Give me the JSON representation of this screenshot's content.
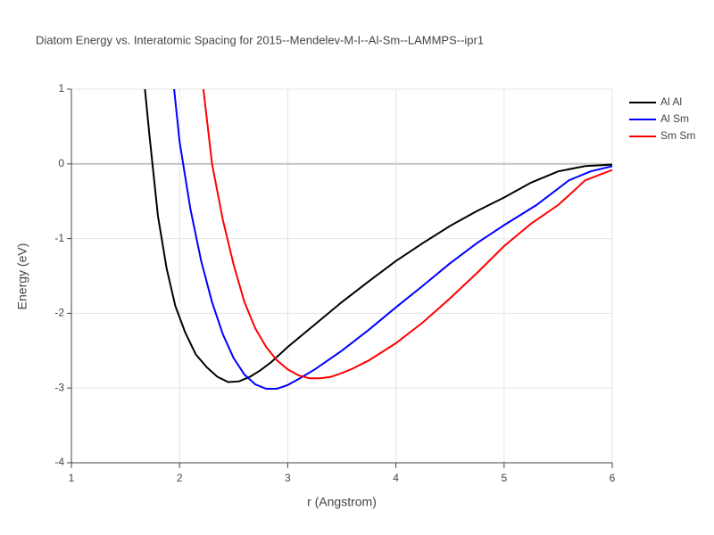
{
  "chart_data": {
    "type": "line",
    "title": "Diatom Energy vs. Interatomic Spacing for 2015--Mendelev-M-I--Al-Sm--LAMMPS--ipr1",
    "xlabel": "r (Angstrom)",
    "ylabel": "Energy (eV)",
    "xlim": [
      1,
      6
    ],
    "ylim": [
      -4,
      1
    ],
    "xticks": [
      1,
      2,
      3,
      4,
      5,
      6
    ],
    "yticks": [
      -4,
      -3,
      -2,
      -1,
      0,
      1
    ],
    "grid": true,
    "legend": "top-right",
    "series": [
      {
        "name": "Al Al",
        "color": "#000000",
        "x": [
          1.68,
          1.72,
          1.8,
          1.88,
          1.96,
          2.05,
          2.15,
          2.25,
          2.35,
          2.45,
          2.55,
          2.65,
          2.75,
          2.85,
          3,
          3.25,
          3.5,
          3.75,
          4,
          4.25,
          4.5,
          4.75,
          5,
          5.25,
          5.5,
          5.75,
          6
        ],
        "values": [
          1,
          0.4,
          -0.7,
          -1.4,
          -1.9,
          -2.25,
          -2.55,
          -2.72,
          -2.85,
          -2.92,
          -2.91,
          -2.85,
          -2.76,
          -2.65,
          -2.45,
          -2.15,
          -1.85,
          -1.57,
          -1.3,
          -1.06,
          -0.83,
          -0.63,
          -0.45,
          -0.25,
          -0.1,
          -0.03,
          -0.01
        ]
      },
      {
        "name": "Al Sm",
        "color": "#0000ff",
        "x": [
          1.95,
          2,
          2.1,
          2.2,
          2.3,
          2.4,
          2.5,
          2.6,
          2.7,
          2.8,
          2.9,
          3,
          3.1,
          3.25,
          3.5,
          3.75,
          4,
          4.25,
          4.5,
          4.75,
          5,
          5.3,
          5.6,
          5.8,
          6
        ],
        "values": [
          1,
          0.3,
          -0.6,
          -1.3,
          -1.85,
          -2.28,
          -2.6,
          -2.82,
          -2.95,
          -3.01,
          -3.01,
          -2.96,
          -2.88,
          -2.75,
          -2.5,
          -2.22,
          -1.92,
          -1.63,
          -1.33,
          -1.06,
          -0.82,
          -0.55,
          -0.22,
          -0.1,
          -0.03
        ]
      },
      {
        "name": "Sm Sm",
        "color": "#ff0000",
        "x": [
          2.22,
          2.3,
          2.4,
          2.5,
          2.6,
          2.7,
          2.8,
          2.9,
          3,
          3.1,
          3.2,
          3.3,
          3.4,
          3.5,
          3.6,
          3.75,
          4,
          4.25,
          4.5,
          4.75,
          5,
          5.25,
          5.5,
          5.6,
          5.75,
          6
        ],
        "values": [
          1,
          0,
          -0.75,
          -1.35,
          -1.85,
          -2.2,
          -2.45,
          -2.63,
          -2.75,
          -2.83,
          -2.87,
          -2.87,
          -2.85,
          -2.8,
          -2.74,
          -2.63,
          -2.4,
          -2.12,
          -1.8,
          -1.46,
          -1.1,
          -0.8,
          -0.55,
          -0.42,
          -0.22,
          -0.08
        ]
      }
    ]
  }
}
